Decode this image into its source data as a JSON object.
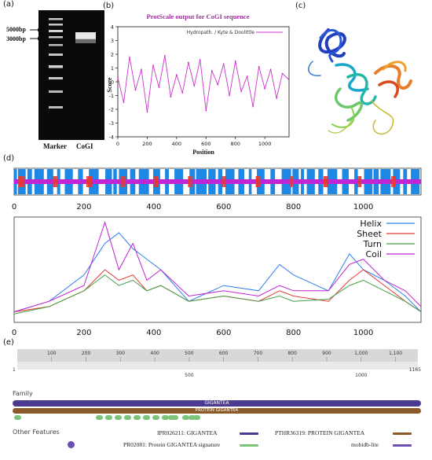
{
  "panel_labels": {
    "a": "(a)",
    "b": "(b)",
    "c": "(c)",
    "d": "(d)",
    "e": "(e)"
  },
  "gel": {
    "size_labels": [
      "5000bp",
      "3000bp"
    ],
    "lane_labels": [
      "Marker",
      "CoGI"
    ]
  },
  "chart_data": [
    {
      "id": "protscale",
      "type": "line",
      "title": "ProtScale output for CoGI sequence",
      "xlabel": "Position",
      "ylabel": "Score",
      "xlim": [
        0,
        1165
      ],
      "ylim": [
        -4,
        4
      ],
      "x_ticks": [
        0,
        200,
        400,
        600,
        800,
        1000
      ],
      "y_ticks": [
        4,
        3,
        2,
        1,
        0,
        -1,
        -2,
        -3,
        -4
      ],
      "series": [
        {
          "name": "Hydropath. / Kyte & Doolittle",
          "color": "#cc33cc",
          "x": [
            0,
            40,
            80,
            120,
            160,
            200,
            240,
            280,
            320,
            360,
            400,
            440,
            480,
            520,
            560,
            600,
            640,
            680,
            720,
            760,
            800,
            840,
            880,
            920,
            960,
            1000,
            1040,
            1080,
            1120,
            1160
          ],
          "values": [
            0.3,
            -1.5,
            1.8,
            -0.6,
            0.9,
            -2.2,
            1.2,
            -0.4,
            1.9,
            -1.1,
            0.5,
            -0.8,
            1.4,
            -0.3,
            1.6,
            -2.1,
            0.8,
            -0.2,
            1.3,
            -1.0,
            1.5,
            -0.7,
            0.4,
            -1.8,
            1.1,
            -0.5,
            0.9,
            -1.2,
            0.6,
            0.2
          ]
        }
      ]
    },
    {
      "id": "sopma-profile",
      "type": "line",
      "xlim": [
        0,
        1165
      ],
      "x_ticks": [
        0,
        200,
        400,
        600,
        800,
        1000
      ],
      "legend_position": "top-right",
      "series": [
        {
          "name": "Helix",
          "color": "#2f80ed",
          "x": [
            0,
            100,
            200,
            260,
            300,
            340,
            380,
            420,
            500,
            600,
            700,
            760,
            800,
            900,
            960,
            1000,
            1060,
            1120,
            1165
          ],
          "values": [
            0.1,
            0.2,
            0.45,
            0.75,
            0.85,
            0.7,
            0.6,
            0.5,
            0.2,
            0.35,
            0.3,
            0.55,
            0.45,
            0.3,
            0.65,
            0.5,
            0.4,
            0.25,
            0.1
          ]
        },
        {
          "name": "Sheet",
          "color": "#e53935",
          "x": [
            0,
            100,
            200,
            260,
            300,
            340,
            380,
            420,
            500,
            600,
            700,
            760,
            800,
            900,
            960,
            1000,
            1060,
            1120,
            1165
          ],
          "values": [
            0.1,
            0.15,
            0.3,
            0.5,
            0.4,
            0.45,
            0.3,
            0.35,
            0.2,
            0.25,
            0.2,
            0.3,
            0.25,
            0.2,
            0.4,
            0.5,
            0.35,
            0.2,
            0.1
          ]
        },
        {
          "name": "Turn",
          "color": "#43a047",
          "x": [
            0,
            100,
            200,
            260,
            300,
            340,
            380,
            420,
            500,
            600,
            700,
            760,
            800,
            900,
            960,
            1000,
            1060,
            1120,
            1165
          ],
          "values": [
            0.08,
            0.15,
            0.3,
            0.45,
            0.35,
            0.4,
            0.3,
            0.35,
            0.2,
            0.25,
            0.2,
            0.25,
            0.2,
            0.22,
            0.35,
            0.4,
            0.3,
            0.2,
            0.1
          ]
        },
        {
          "name": "Coil",
          "color": "#c026d3",
          "x": [
            0,
            100,
            200,
            260,
            300,
            340,
            380,
            420,
            500,
            600,
            700,
            760,
            800,
            900,
            960,
            1000,
            1060,
            1120,
            1165
          ],
          "values": [
            0.1,
            0.2,
            0.35,
            0.95,
            0.5,
            0.75,
            0.4,
            0.5,
            0.25,
            0.3,
            0.25,
            0.35,
            0.3,
            0.3,
            0.55,
            0.6,
            0.4,
            0.3,
            0.15
          ]
        }
      ]
    }
  ],
  "interpro": {
    "ruler_start": "1",
    "ruler_end": "1165",
    "ruler_ticks": [
      "100",
      "200",
      "300",
      "400",
      "500",
      "600",
      "700",
      "800",
      "900",
      "1,000",
      "1,100"
    ],
    "sub_ticks": [
      "500",
      "1000"
    ],
    "family_title": "Family",
    "family_bar_1": "GIGANTEA",
    "family_bar_2": "PROTEIN GIGANTEA",
    "other_title": "Other Features",
    "legend": [
      {
        "label": "IPR026211: GIGANTEA",
        "color": "#4b3a8f"
      },
      {
        "label": "PTHR36319: PROTEIN GIGANTEA",
        "color": "#8b5a2b"
      },
      {
        "label": "PR02081: Protein GIGANTEA signature",
        "color": "#7cc47c"
      },
      {
        "label": "mobidb-lite",
        "color": "#6a4fb3"
      }
    ],
    "colors": {
      "family_1": "#4b3a8f",
      "family_2": "#8b5a2b",
      "signature": "#7cc47c",
      "mobidb": "#6a4fb3"
    }
  }
}
